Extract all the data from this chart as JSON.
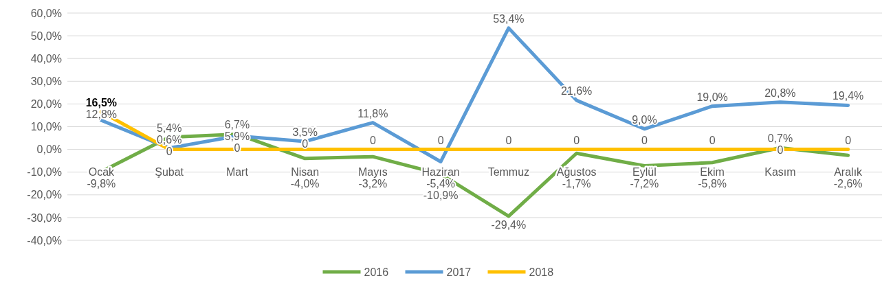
{
  "chart_data": {
    "type": "line",
    "categories": [
      "Ocak",
      "Şubat",
      "Mart",
      "Nisan",
      "Mayıs",
      "Haziran",
      "Temmuz",
      "Ağustos",
      "Eylül",
      "Ekim",
      "Kasım",
      "Aralık"
    ],
    "series": [
      {
        "name": "2016",
        "color": "#70ad47",
        "values": [
          -9.8,
          5.4,
          6.7,
          -4.0,
          -3.2,
          -10.9,
          -29.4,
          -1.7,
          -7.2,
          -5.8,
          0.7,
          -2.6
        ],
        "value_labels": [
          "-9,8%",
          "5,4%",
          "6,7%",
          "-4,0%",
          "-3,2%",
          "-10,9%",
          "-29,4%",
          "-1,7%",
          "-7,2%",
          "-5,8%",
          "0,7%",
          "-2,6%"
        ]
      },
      {
        "name": "2017",
        "color": "#5b9bd5",
        "values": [
          12.8,
          0.6,
          5.9,
          3.5,
          11.8,
          -5.4,
          53.4,
          21.6,
          9.0,
          19.0,
          20.8,
          19.4
        ],
        "value_labels": [
          "12,8%",
          "0,6%",
          "5,9%",
          "3,5%",
          "11,8%",
          "-5,4%",
          "53,4%",
          "21,6%",
          "9,0%",
          "19,0%",
          "20,8%",
          "19,4%"
        ]
      },
      {
        "name": "2018",
        "color": "#ffc000",
        "values": [
          16.5,
          0,
          0,
          0,
          0,
          0,
          0,
          0,
          0,
          0,
          0,
          0
        ],
        "value_labels": [
          "16,5%",
          "0",
          "0",
          "0",
          "0",
          "0",
          "0",
          "0",
          "0",
          "0",
          "0",
          "0"
        ]
      }
    ],
    "ylim": [
      -40,
      60
    ],
    "yticks": [
      {
        "value": -40,
        "label": "-40,0%"
      },
      {
        "value": -30,
        "label": "-30,0%"
      },
      {
        "value": -20,
        "label": "-20,0%"
      },
      {
        "value": -10,
        "label": "-10,0%"
      },
      {
        "value": 0,
        "label": "0,0%"
      },
      {
        "value": 10,
        "label": "10,0%"
      },
      {
        "value": 20,
        "label": "20,0%"
      },
      {
        "value": 30,
        "label": "30,0%"
      },
      {
        "value": 40,
        "label": "40,0%"
      },
      {
        "value": 50,
        "label": "50,0%"
      },
      {
        "value": 60,
        "label": "60,0%"
      }
    ],
    "grid": "y",
    "legend": "bottom",
    "marker": "none",
    "line_style": "solid"
  }
}
